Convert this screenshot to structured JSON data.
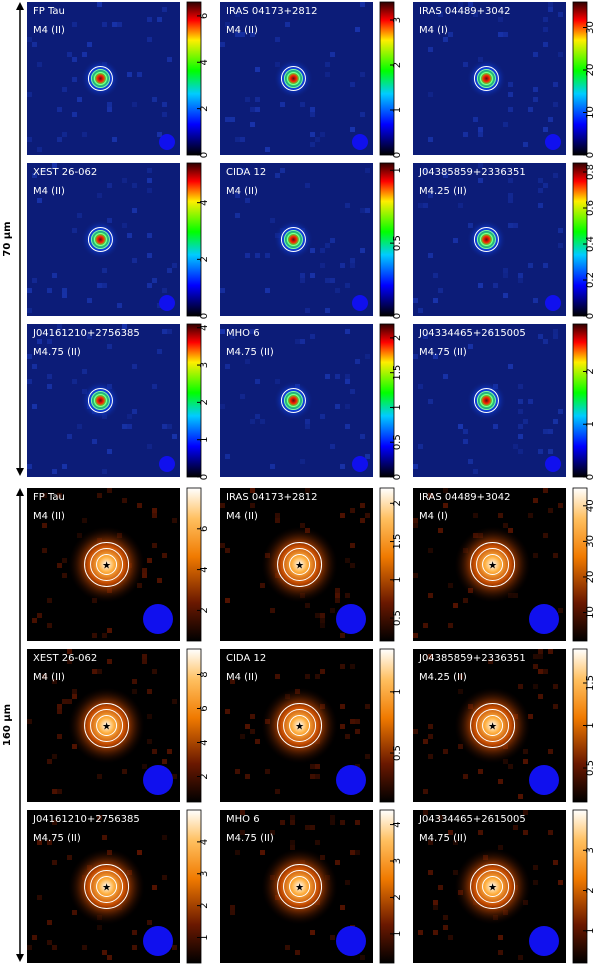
{
  "blocks": [
    {
      "label": "70 μm",
      "panels": [
        {
          "name": "FP Tau",
          "class": "M4 (II)",
          "range": [
            0,
            6.6
          ],
          "ticks": [
            0,
            2,
            4,
            6
          ]
        },
        {
          "name": "IRAS 04173+2812",
          "class": "M4 (II)",
          "range": [
            0,
            3.4
          ],
          "ticks": [
            0,
            1,
            2,
            3
          ]
        },
        {
          "name": "IRAS 04489+3042",
          "class": "M4 (I)",
          "range": [
            0,
            36
          ],
          "ticks": [
            0,
            10,
            20,
            30
          ]
        },
        {
          "name": "XEST 26-062",
          "class": "M4 (II)",
          "range": [
            0,
            5.4
          ],
          "ticks": [
            0,
            2,
            4
          ]
        },
        {
          "name": "CIDA 12",
          "class": "M4 (II)",
          "range": [
            0,
            1.05
          ],
          "ticks": [
            0,
            0.5,
            1
          ]
        },
        {
          "name": "J04385859+2336351",
          "class": "M4.25 (II)",
          "range": [
            0,
            0.85
          ],
          "ticks": [
            0,
            0.2,
            0.4,
            0.6,
            0.8
          ]
        },
        {
          "name": "J04161210+2756385",
          "class": "M4.75 (II)",
          "range": [
            0,
            4.1
          ],
          "ticks": [
            0,
            1,
            2,
            3,
            4
          ]
        },
        {
          "name": "MHO 6",
          "class": "M4.75 (II)",
          "range": [
            0,
            2.2
          ],
          "ticks": [
            0,
            0.5,
            1,
            1.5,
            2
          ]
        },
        {
          "name": "J04334465+2615005",
          "class": "M4.75 (II)",
          "range": [
            0,
            2.9
          ],
          "ticks": [
            0,
            1,
            2
          ]
        }
      ]
    },
    {
      "label": "160 μm",
      "panels": [
        {
          "name": "FP Tau",
          "class": "M4 (II)",
          "range": [
            0.5,
            8
          ],
          "ticks": [
            2,
            4,
            6
          ]
        },
        {
          "name": "IRAS 04173+2812",
          "class": "M4 (II)",
          "range": [
            0.2,
            2.2
          ],
          "ticks": [
            0.5,
            1,
            1.5,
            2
          ]
        },
        {
          "name": "IRAS 04489+3042",
          "class": "M4 (I)",
          "range": [
            2,
            45
          ],
          "ticks": [
            10,
            20,
            30,
            40
          ]
        },
        {
          "name": "XEST 26-062",
          "class": "M4 (II)",
          "range": [
            0.5,
            9.5
          ],
          "ticks": [
            2,
            4,
            6,
            8
          ]
        },
        {
          "name": "CIDA 12",
          "class": "M4 (II)",
          "range": [
            0.1,
            1.35
          ],
          "ticks": [
            0.5,
            1
          ]
        },
        {
          "name": "J04385859+2336351",
          "class": "M4.25 (II)",
          "range": [
            0.1,
            1.9
          ],
          "ticks": [
            0.5,
            1,
            1.5
          ]
        },
        {
          "name": "J04161210+2756385",
          "class": "M4.75 (II)",
          "range": [
            0.2,
            5
          ],
          "ticks": [
            1,
            2,
            3,
            4
          ]
        },
        {
          "name": "MHO 6",
          "class": "M4.75 (II)",
          "range": [
            0.2,
            4.4
          ],
          "ticks": [
            1,
            2,
            3,
            4
          ]
        },
        {
          "name": "J04334465+2615005",
          "class": "M4.75 (II)",
          "range": [
            0.2,
            4
          ],
          "ticks": [
            1,
            2,
            3
          ]
        }
      ]
    }
  ]
}
